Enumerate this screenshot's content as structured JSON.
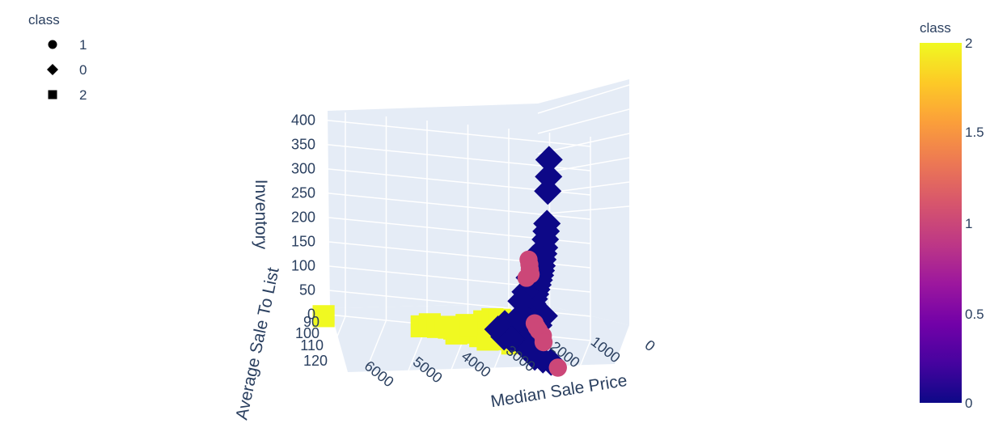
{
  "chart_data": {
    "type": "scatter3d",
    "axes": {
      "x": {
        "title": "Median Sale Price",
        "ticks": [
          "6000",
          "5000",
          "4000",
          "3000",
          "2000",
          "1000",
          "0"
        ]
      },
      "y": {
        "title": "Average Sale To List",
        "ticks": [
          "90",
          "100",
          "110",
          "120"
        ]
      },
      "z": {
        "title": "Inventory",
        "ticks": [
          "400",
          "350",
          "300",
          "250",
          "200",
          "150",
          "100",
          "50",
          "0"
        ]
      }
    },
    "legend": {
      "title": "class",
      "placement": "top-left",
      "items": [
        {
          "label": "1",
          "symbol": "circle"
        },
        {
          "label": "0",
          "symbol": "diamond"
        },
        {
          "label": "2",
          "symbol": "square"
        }
      ]
    },
    "colorbar": {
      "title": "class",
      "ticks": [
        "2",
        "1.5",
        "1",
        "0.5",
        "0"
      ],
      "range": [
        0,
        2
      ],
      "colors": {
        "low": "#0d0887",
        "mid": "#cc4778",
        "high": "#f0f921"
      }
    },
    "series": [
      {
        "name": "0",
        "symbol": "diamond",
        "color": "#0d0887",
        "points": [
          [
            850,
            100,
            400
          ],
          [
            860,
            100,
            365
          ],
          [
            880,
            100,
            335
          ],
          [
            900,
            100,
            268
          ],
          [
            920,
            100,
            252
          ],
          [
            940,
            100,
            235
          ],
          [
            960,
            100,
            218
          ],
          [
            980,
            100,
            205
          ],
          [
            1000,
            100,
            193
          ],
          [
            1020,
            100,
            180
          ],
          [
            1040,
            100,
            170
          ],
          [
            1060,
            100,
            160
          ],
          [
            1090,
            100,
            150
          ],
          [
            1120,
            100,
            140
          ],
          [
            1150,
            100,
            130
          ],
          [
            1180,
            100,
            120
          ],
          [
            1210,
            100,
            110
          ],
          [
            1250,
            100,
            100
          ],
          [
            1290,
            100,
            92
          ],
          [
            1330,
            100,
            84
          ],
          [
            1380,
            100,
            78
          ],
          [
            1430,
            100,
            70
          ],
          [
            1500,
            100,
            62
          ],
          [
            1580,
            100,
            55
          ],
          [
            1660,
            100,
            48
          ],
          [
            1750,
            100,
            40
          ],
          [
            1850,
            100,
            33
          ],
          [
            1950,
            100,
            26
          ],
          [
            1400,
            104,
            30
          ],
          [
            1300,
            104,
            18
          ],
          [
            1100,
            106,
            12
          ],
          [
            900,
            106,
            8
          ],
          [
            700,
            106,
            5
          ],
          [
            1250,
            96,
            22
          ],
          [
            1150,
            97,
            46
          ],
          [
            1000,
            98,
            70
          ],
          [
            1900,
            102,
            60
          ],
          [
            2100,
            100,
            40
          ],
          [
            1700,
            104,
            36
          ],
          [
            1600,
            100,
            68
          ],
          [
            1200,
            102,
            200
          ],
          [
            1300,
            102,
            160
          ],
          [
            1400,
            102,
            130
          ],
          [
            1500,
            102,
            110
          ]
        ]
      },
      {
        "name": "1",
        "symbol": "circle",
        "color": "#cc4778",
        "points": [
          [
            500,
            108,
            2
          ],
          [
            1350,
            100,
            190
          ],
          [
            1330,
            100,
            180
          ],
          [
            1320,
            100,
            170
          ],
          [
            1300,
            100,
            160
          ],
          [
            1400,
            100,
            152
          ],
          [
            1200,
            100,
            60
          ],
          [
            1150,
            100,
            52
          ],
          [
            1100,
            100,
            46
          ],
          [
            1000,
            100,
            36
          ],
          [
            950,
            102,
            30
          ]
        ]
      },
      {
        "name": "2",
        "symbol": "square",
        "color": "#f0f921",
        "points": [
          [
            6500,
            92,
            3
          ],
          [
            4100,
            92,
            2
          ],
          [
            3900,
            92,
            8
          ],
          [
            3700,
            92,
            4
          ],
          [
            3500,
            92,
            6
          ],
          [
            3300,
            92,
            4
          ],
          [
            3100,
            92,
            8
          ],
          [
            2900,
            92,
            6
          ],
          [
            2700,
            92,
            4
          ],
          [
            2500,
            92,
            3
          ],
          [
            2300,
            92,
            2
          ],
          [
            2100,
            94,
            2
          ],
          [
            1900,
            95,
            4
          ],
          [
            1800,
            97,
            3
          ],
          [
            2600,
            90,
            18
          ],
          [
            2400,
            90,
            24
          ],
          [
            2200,
            91,
            28
          ],
          [
            2000,
            92,
            30
          ],
          [
            3200,
            95,
            5
          ],
          [
            2800,
            95,
            10
          ],
          [
            2600,
            96,
            8
          ],
          [
            2400,
            97,
            6
          ],
          [
            3000,
            92,
            14
          ],
          [
            3400,
            94,
            12
          ]
        ]
      }
    ]
  }
}
